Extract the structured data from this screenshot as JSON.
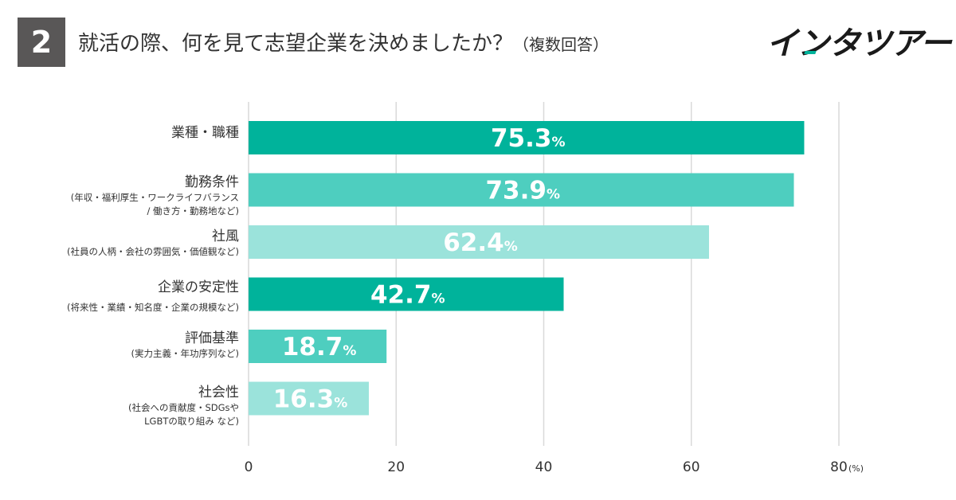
{
  "header": {
    "question_number": "2",
    "title": "就活の際、何を見て志望企業を決めましたか？",
    "title_note": "（複数回答）",
    "logo": "インタツアー"
  },
  "colors": {
    "dark": "#00b39b",
    "mid": "#4ecebf",
    "light": "#9be3db",
    "grid": "#d9d9d9",
    "accent": "#00b39b"
  },
  "chart_data": {
    "type": "bar",
    "orientation": "horizontal",
    "title": "就活の際、何を見て志望企業を決めましたか？（複数回答）",
    "categories": [
      "業種・職種",
      "勤務条件",
      "社風",
      "企業の安定性",
      "評価基準",
      "社会性"
    ],
    "category_notes": [
      [],
      [
        "(年収・福利厚生・ワークライフバランス",
        "/ 働き方・勤務地など)"
      ],
      [
        "(社員の人柄・会社の雰囲気・価値観など)"
      ],
      [
        "(将来性・業績・知名度・企業の規模など)"
      ],
      [
        "(実力主義・年功序列など)"
      ],
      [
        "(社会への貢献度・SDGsや",
        "LGBTの取り組み など)"
      ]
    ],
    "values": [
      75.3,
      73.9,
      62.4,
      42.7,
      18.7,
      16.3
    ],
    "value_labels": [
      "75.3",
      "73.9",
      "62.4",
      "42.7",
      "18.7",
      "16.3"
    ],
    "value_unit": "%",
    "bar_shades": [
      "dark",
      "mid",
      "light",
      "dark",
      "mid",
      "light"
    ],
    "xlim": [
      0,
      80
    ],
    "xticks": [
      0,
      20,
      40,
      60,
      80
    ],
    "x_tick_labels": [
      "0",
      "20",
      "40",
      "60",
      "80"
    ],
    "x_unit_label": "(%)",
    "grid": true
  }
}
